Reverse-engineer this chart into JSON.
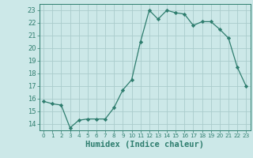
{
  "x": [
    0,
    1,
    2,
    3,
    4,
    5,
    6,
    7,
    8,
    9,
    10,
    11,
    12,
    13,
    14,
    15,
    16,
    17,
    18,
    19,
    20,
    21,
    22,
    23
  ],
  "y": [
    15.8,
    15.6,
    15.5,
    13.7,
    14.3,
    14.4,
    14.4,
    14.4,
    15.3,
    16.7,
    17.5,
    20.5,
    23.0,
    22.3,
    23.0,
    22.8,
    22.7,
    21.8,
    22.1,
    22.1,
    21.5,
    20.8,
    18.5,
    17.0
  ],
  "line_color": "#2e7d6e",
  "marker": "D",
  "marker_size": 2.2,
  "bg_color": "#cce8e8",
  "grid_color": "#aacccc",
  "xlabel": "Humidex (Indice chaleur)",
  "ylim": [
    13.5,
    23.5
  ],
  "xlim": [
    -0.5,
    23.5
  ],
  "yticks": [
    14,
    15,
    16,
    17,
    18,
    19,
    20,
    21,
    22,
    23
  ],
  "xticks": [
    0,
    1,
    2,
    3,
    4,
    5,
    6,
    7,
    8,
    9,
    10,
    11,
    12,
    13,
    14,
    15,
    16,
    17,
    18,
    19,
    20,
    21,
    22,
    23
  ],
  "tick_color": "#2e7d6e",
  "label_color": "#2e7d6e",
  "xlabel_fontsize": 7.5,
  "tick_fontsize": 6.0,
  "linewidth": 0.9
}
